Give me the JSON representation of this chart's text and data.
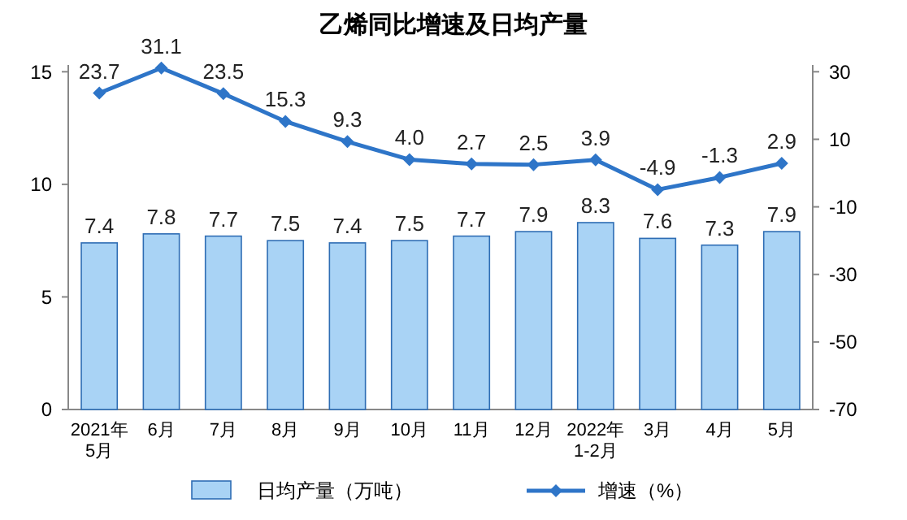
{
  "chart_data": {
    "type": "bar",
    "title": "乙烯同比增速及日均产量",
    "categories": [
      "2021年\n5月",
      "6月",
      "7月",
      "8月",
      "9月",
      "10月",
      "11月",
      "12月",
      "2022年\n1-2月",
      "3月",
      "4月",
      "5月"
    ],
    "series": [
      {
        "name": "日均产量（万吨）",
        "color": "#a9d3f5",
        "values": [
          7.4,
          7.8,
          7.7,
          7.5,
          7.4,
          7.5,
          7.7,
          7.9,
          8.3,
          7.6,
          7.3,
          7.9
        ],
        "value_labels": [
          "7.4",
          "7.8",
          "7.7",
          "7.5",
          "7.4",
          "7.5",
          "7.7",
          "7.9",
          "8.3",
          "7.6",
          "7.3",
          "7.9"
        ]
      },
      {
        "name": "增速（%）",
        "type": "line",
        "axis": "y2",
        "color": "#2e75c8",
        "marker": "diamond",
        "values": [
          23.7,
          31.1,
          23.5,
          15.3,
          9.3,
          4.0,
          2.7,
          2.5,
          3.9,
          -4.9,
          -1.3,
          2.9
        ],
        "value_labels": [
          "23.7",
          "31.1",
          "23.5",
          "15.3",
          "9.3",
          "4.0",
          "2.7",
          "2.5",
          "3.9",
          "-4.9",
          "-1.3",
          "2.9"
        ]
      }
    ],
    "ylim": [
      0,
      15.3
    ],
    "yticks": [
      0,
      5,
      10,
      15
    ],
    "y2lim": [
      -70,
      32
    ],
    "y2ticks": [
      -70,
      -50,
      -30,
      -10,
      10,
      30
    ],
    "grid": false,
    "legend": "bottom"
  }
}
